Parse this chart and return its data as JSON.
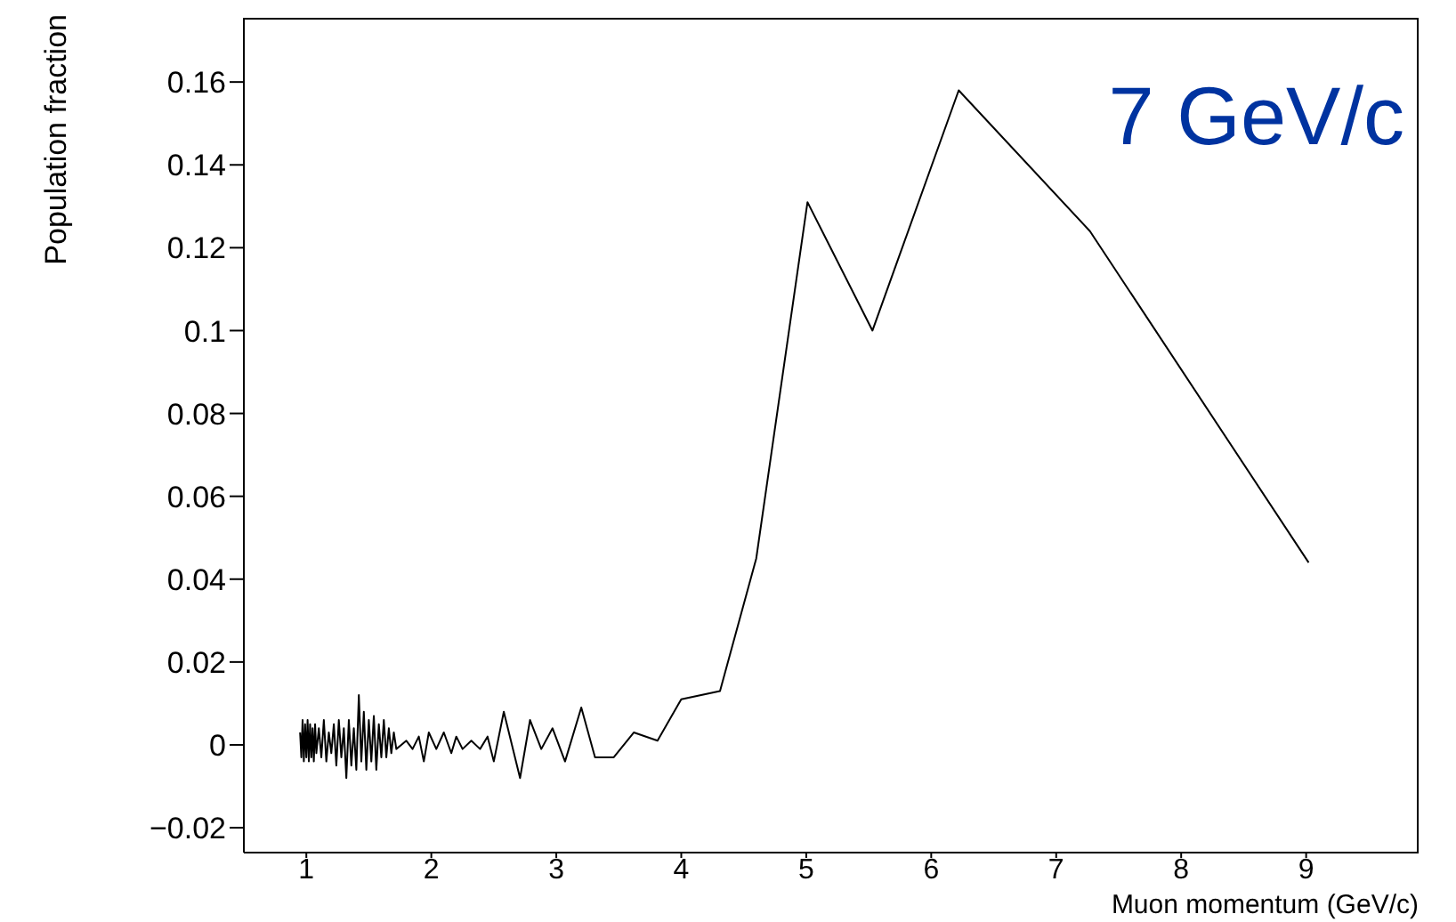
{
  "chart_data": {
    "type": "line",
    "xlabel": "Muon momentum (GeV/c)",
    "ylabel": "Population fraction",
    "annotations": [
      "7 GeV/c"
    ],
    "xlim": [
      0.5,
      9.9
    ],
    "xticks": [
      1,
      2,
      3,
      4,
      5,
      6,
      7,
      8,
      9
    ],
    "ylim": [
      -0.026,
      0.1755
    ],
    "yticks": [
      {
        "value": -0.02,
        "label": "−0.02"
      },
      0,
      0.02,
      0.04,
      0.06,
      0.08,
      0.1,
      0.12,
      0.14,
      0.16
    ],
    "grid": false,
    "legend": false,
    "marker": "none",
    "line_style": "solid",
    "series": [
      {
        "color": "#000000",
        "x": [
          0.95,
          0.96,
          0.97,
          0.98,
          0.99,
          1.0,
          1.01,
          1.02,
          1.03,
          1.04,
          1.05,
          1.06,
          1.07,
          1.08,
          1.1,
          1.12,
          1.14,
          1.16,
          1.18,
          1.2,
          1.22,
          1.24,
          1.26,
          1.28,
          1.3,
          1.32,
          1.34,
          1.36,
          1.38,
          1.4,
          1.42,
          1.44,
          1.46,
          1.48,
          1.5,
          1.52,
          1.54,
          1.56,
          1.58,
          1.6,
          1.62,
          1.64,
          1.66,
          1.68,
          1.7,
          1.72,
          1.76,
          1.8,
          1.85,
          1.9,
          1.94,
          1.98,
          2.04,
          2.1,
          2.16,
          2.2,
          2.25,
          2.32,
          2.39,
          2.45,
          2.5,
          2.58,
          2.71,
          2.79,
          2.88,
          2.97,
          3.07,
          3.2,
          3.31,
          3.46,
          3.62,
          3.81,
          4.0,
          4.31,
          4.6,
          5.01,
          5.53,
          6.22,
          7.27,
          9.02
        ],
        "values": [
          0.003,
          -0.003,
          0.006,
          -0.004,
          0.005,
          -0.003,
          0.006,
          -0.004,
          0.005,
          -0.003,
          0.004,
          -0.004,
          0.005,
          -0.002,
          0.004,
          -0.003,
          0.006,
          -0.004,
          0.003,
          -0.002,
          0.005,
          -0.005,
          0.006,
          -0.003,
          0.004,
          -0.008,
          0.006,
          -0.005,
          0.004,
          -0.006,
          0.012,
          -0.004,
          0.008,
          -0.006,
          0.006,
          -0.004,
          0.007,
          -0.006,
          0.005,
          -0.003,
          0.006,
          -0.003,
          0.004,
          -0.002,
          0.003,
          -0.001,
          0.0,
          0.001,
          -0.001,
          0.002,
          -0.004,
          0.003,
          -0.001,
          0.003,
          -0.002,
          0.002,
          -0.001,
          0.001,
          -0.001,
          0.002,
          -0.004,
          0.008,
          -0.008,
          0.006,
          -0.001,
          0.004,
          -0.004,
          0.009,
          -0.003,
          -0.003,
          0.003,
          0.001,
          0.011,
          0.013,
          0.045,
          0.131,
          0.1,
          0.158,
          0.124,
          0.044
        ]
      }
    ]
  }
}
